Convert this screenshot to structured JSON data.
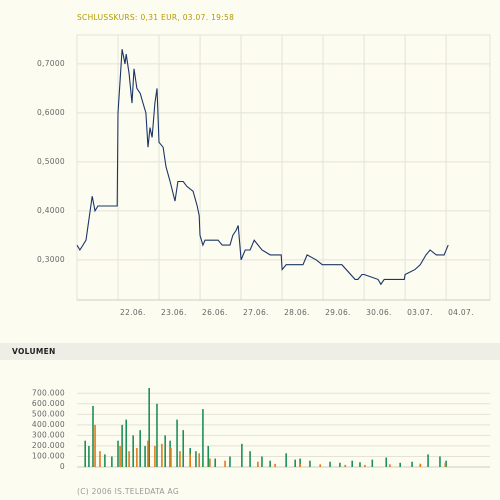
{
  "chart_data": [
    {
      "type": "line",
      "title": "SCHLUSSKURS: 0,31 EUR, 03.07. 19:58",
      "color": "#1b3566",
      "grid": true,
      "x": [
        0,
        0.07,
        0.22,
        0.37,
        0.44,
        0.51,
        0.98,
        1.0,
        1.1,
        1.17,
        1.2,
        1.27,
        1.34,
        1.39,
        1.46,
        1.54,
        1.61,
        1.68,
        1.73,
        1.78,
        1.83,
        1.9,
        1.95,
        2.0,
        2.1,
        2.17,
        2.27,
        2.39,
        2.46,
        2.59,
        2.68,
        2.83,
        2.93,
        2.98,
        3.0,
        3.07,
        3.12,
        3.44,
        3.54,
        3.73,
        3.8,
        3.88,
        3.93,
        4.0,
        4.1,
        4.22,
        4.32,
        4.51,
        4.71,
        4.98,
        5.0,
        5.1,
        5.51,
        5.61,
        5.83,
        5.98,
        6.0,
        6.46,
        6.78,
        6.85,
        6.95,
        7.0,
        7.34,
        7.41,
        7.49,
        7.98,
        8.0,
        8.24,
        8.37,
        8.51,
        8.61,
        8.76,
        8.95,
        9.05
      ],
      "values": [
        0.33,
        0.32,
        0.34,
        0.43,
        0.4,
        0.41,
        0.41,
        0.6,
        0.73,
        0.7,
        0.72,
        0.68,
        0.62,
        0.69,
        0.65,
        0.64,
        0.62,
        0.6,
        0.53,
        0.57,
        0.55,
        0.62,
        0.65,
        0.54,
        0.53,
        0.49,
        0.46,
        0.42,
        0.46,
        0.46,
        0.45,
        0.44,
        0.41,
        0.39,
        0.35,
        0.33,
        0.34,
        0.34,
        0.33,
        0.33,
        0.35,
        0.36,
        0.37,
        0.3,
        0.32,
        0.32,
        0.34,
        0.32,
        0.31,
        0.31,
        0.28,
        0.29,
        0.29,
        0.31,
        0.3,
        0.29,
        0.29,
        0.29,
        0.26,
        0.26,
        0.27,
        0.27,
        0.26,
        0.25,
        0.26,
        0.26,
        0.27,
        0.28,
        0.29,
        0.31,
        0.32,
        0.31,
        0.31,
        0.33
      ],
      "xlim": [
        0,
        10.07
      ],
      "ylim": [
        0.218,
        0.759
      ],
      "xticks": [
        {
          "value": 1,
          "label": "22.06."
        },
        {
          "value": 2,
          "label": "23.06."
        },
        {
          "value": 3,
          "label": "26.06."
        },
        {
          "value": 4,
          "label": "27.06."
        },
        {
          "value": 5,
          "label": "28.06."
        },
        {
          "value": 6,
          "label": "29.06."
        },
        {
          "value": 7,
          "label": "30.06."
        },
        {
          "value": 8,
          "label": "03.07."
        },
        {
          "value": 9,
          "label": "04.07."
        }
      ],
      "yticks": [
        {
          "value": 0.3,
          "label": "0,3000"
        },
        {
          "value": 0.4,
          "label": "0,4000"
        },
        {
          "value": 0.5,
          "label": "0,5000"
        },
        {
          "value": 0.6,
          "label": "0,6000"
        },
        {
          "value": 0.7,
          "label": "0,7000"
        }
      ]
    },
    {
      "type": "bar",
      "title": "VOLUMEN",
      "grid": true,
      "xlim": [
        0,
        10.07
      ],
      "ylim": [
        0,
        750000
      ],
      "yticks": [
        0,
        {
          "value": 100000,
          "label": "100.000"
        },
        {
          "value": 200000,
          "label": "200.000"
        },
        {
          "value": 300000,
          "label": "300.000"
        },
        {
          "value": 400000,
          "label": "400.000"
        },
        {
          "value": 500000,
          "label": "500.000"
        },
        {
          "value": 600000,
          "label": "600.000"
        },
        {
          "value": 700000,
          "label": "700.000"
        }
      ],
      "series": [
        {
          "color": "#1f8f5a",
          "x": [
            0.2,
            0.29,
            0.39,
            0.68,
            0.85,
            1.0,
            1.1,
            1.2,
            1.37,
            1.54,
            1.66,
            1.76,
            1.95,
            2.15,
            2.27,
            2.44,
            2.59,
            2.76,
            2.9,
            3.07,
            3.2,
            3.37,
            3.73,
            4.02,
            4.22,
            4.51,
            4.71,
            5.1,
            5.32,
            5.44,
            5.68,
            6.17,
            6.41,
            6.71,
            6.9,
            7.2,
            7.54,
            7.88,
            8.17,
            8.37,
            8.56,
            8.85,
            9.0
          ],
          "values": [
            250000,
            200000,
            580000,
            120000,
            100000,
            250000,
            400000,
            450000,
            300000,
            350000,
            200000,
            750000,
            600000,
            300000,
            250000,
            450000,
            350000,
            180000,
            150000,
            550000,
            200000,
            80000,
            100000,
            220000,
            150000,
            100000,
            60000,
            130000,
            70000,
            80000,
            60000,
            50000,
            40000,
            60000,
            45000,
            70000,
            90000,
            40000,
            50000,
            30000,
            120000,
            100000,
            60000
          ]
        },
        {
          "color": "#e07b1a",
          "x": [
            0.44,
            0.56,
            1.05,
            1.27,
            1.46,
            1.73,
            1.9,
            2.07,
            2.29,
            2.51,
            2.76,
            2.98,
            3.24,
            3.61,
            4.41,
            4.83,
            5.44,
            5.93,
            6.54,
            7.02,
            7.63,
            8.37,
            8.98
          ],
          "values": [
            400000,
            150000,
            200000,
            150000,
            180000,
            250000,
            200000,
            220000,
            180000,
            150000,
            120000,
            130000,
            80000,
            60000,
            50000,
            30000,
            30000,
            25000,
            20000,
            20000,
            25000,
            30000,
            40000
          ]
        }
      ]
    }
  ],
  "footer": "(C) 2006 IS.TELEDATA AG"
}
